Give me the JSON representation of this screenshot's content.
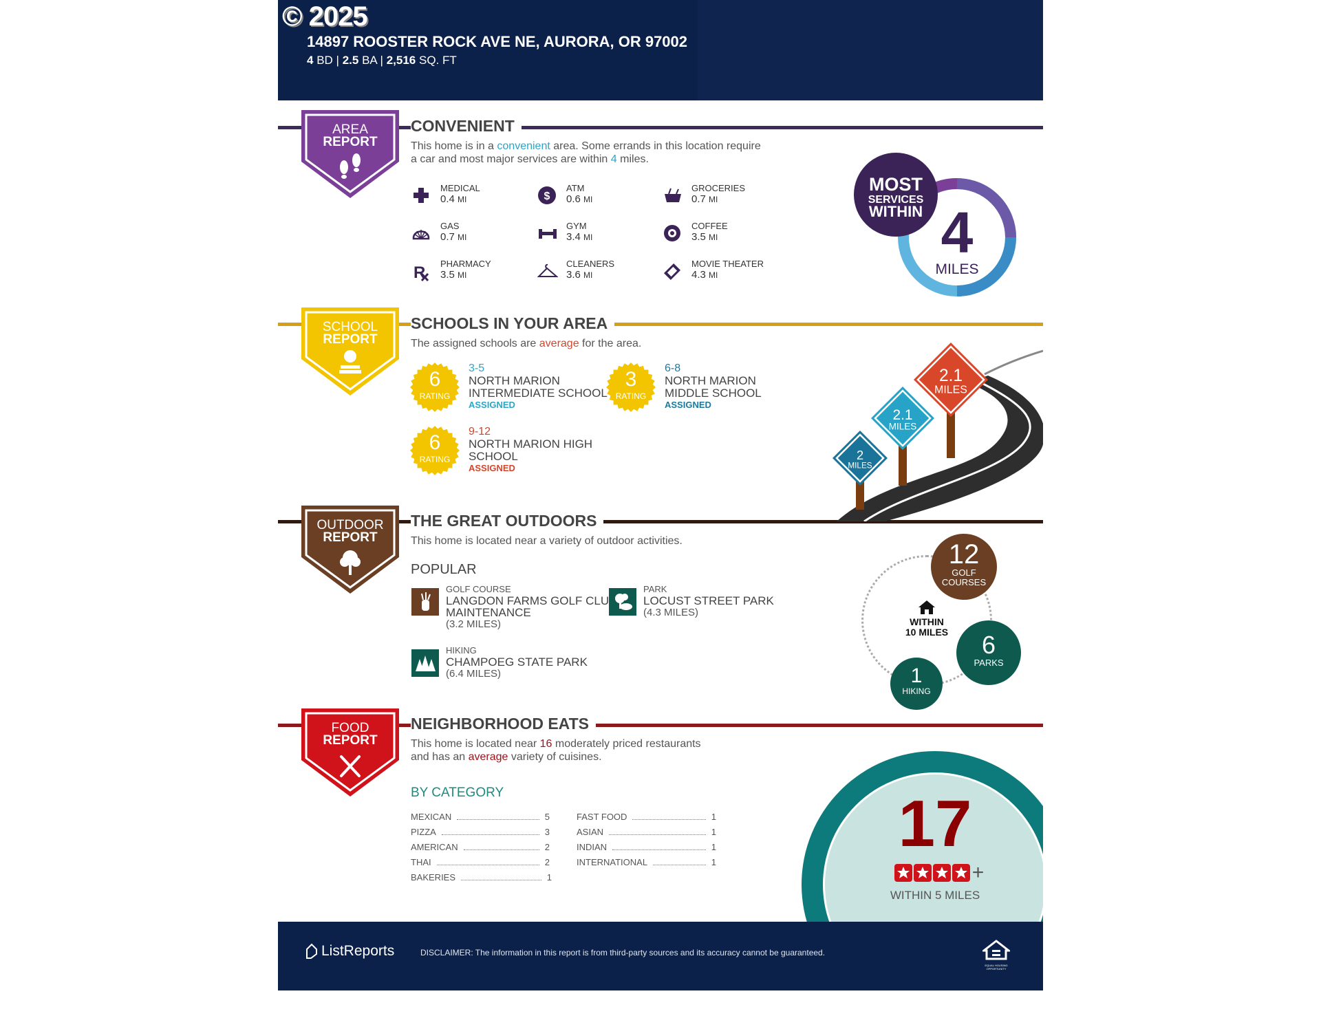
{
  "header": {
    "copyright": "© 2025",
    "address": "14897 ROOSTER ROCK AVE NE, AURORA, OR 97002",
    "beds": "4",
    "beds_unit": "BD",
    "baths": "2.5",
    "baths_unit": "BA",
    "sqft": "2,516",
    "sqft_unit": "SQ. FT",
    "background": "#0c2149"
  },
  "area": {
    "badge": {
      "line1": "AREA",
      "line2": "REPORT",
      "icon": "footprints-icon",
      "color": "#7b3f98"
    },
    "title": "CONVENIENT",
    "desc_pre": "This home is in a ",
    "desc_hl": "convenient",
    "desc_mid": " area. Some errands in this location require",
    "desc_line2_pre": "a car and most major services are within ",
    "desc_hl2": "4",
    "desc_post": " miles.",
    "services": [
      {
        "name": "MEDICAL",
        "dist": "0.4",
        "unit": "MI",
        "icon": "medical-cross-icon"
      },
      {
        "name": "ATM",
        "dist": "0.6",
        "unit": "MI",
        "icon": "dollar-icon"
      },
      {
        "name": "GROCERIES",
        "dist": "0.7",
        "unit": "MI",
        "icon": "grocery-basket-icon"
      },
      {
        "name": "GAS",
        "dist": "0.7",
        "unit": "MI",
        "icon": "shell-icon"
      },
      {
        "name": "GYM",
        "dist": "3.4",
        "unit": "MI",
        "icon": "dumbbell-icon"
      },
      {
        "name": "COFFEE",
        "dist": "3.5",
        "unit": "MI",
        "icon": "coffee-icon"
      },
      {
        "name": "PHARMACY",
        "dist": "3.5",
        "unit": "MI",
        "icon": "rx-icon"
      },
      {
        "name": "CLEANERS",
        "dist": "3.6",
        "unit": "MI",
        "icon": "hanger-icon"
      },
      {
        "name": "MOVIE THEATER",
        "dist": "4.3",
        "unit": "MI",
        "icon": "ticket-icon"
      }
    ],
    "summary": {
      "line1": "MOST",
      "line2": "SERVICES",
      "line3": "WITHIN",
      "value": "4",
      "unit": "MILES"
    }
  },
  "schools": {
    "badge": {
      "line1": "SCHOOL",
      "line2": "REPORT",
      "icon": "apple-books-icon",
      "color": "#f2c500"
    },
    "title": "SCHOOLS IN YOUR AREA",
    "desc_pre": "The assigned schools are ",
    "desc_hl": "average",
    "desc_post": " for the area.",
    "rating_label": "RATING",
    "list": [
      {
        "rating": "6",
        "grades": "3-5",
        "name1": "NORTH MARION",
        "name2": "INTERMEDIATE SCHOOL",
        "status": "ASSIGNED",
        "color": "#2ba6c4"
      },
      {
        "rating": "3",
        "grades": "6-8",
        "name1": "NORTH MARION",
        "name2": "MIDDLE SCHOOL",
        "status": "ASSIGNED",
        "color": "#1a7a9e"
      },
      {
        "rating": "6",
        "grades": "9-12",
        "name1": "NORTH MARION HIGH",
        "name2": "SCHOOL",
        "status": "ASSIGNED",
        "color": "#d2462b"
      }
    ],
    "signs": [
      {
        "value": "2",
        "unit": "MILES",
        "color": "#1a7398"
      },
      {
        "value": "2.1",
        "unit": "MILES",
        "color": "#27a3c7"
      },
      {
        "value": "2.1",
        "unit": "MILES",
        "color": "#d9472a"
      }
    ]
  },
  "outdoors": {
    "badge": {
      "line1": "OUTDOOR",
      "line2": "REPORT",
      "icon": "tree-icon",
      "color": "#6b3f24"
    },
    "title": "THE GREAT OUTDOORS",
    "desc": "This home is located near a variety of outdoor activities.",
    "popular_label": "POPULAR",
    "popular": [
      {
        "type": "GOLF COURSE",
        "name1": "LANGDON FARMS GOLF CLUB",
        "name2": "MAINTENANCE",
        "dist": "(3.2 MILES)",
        "icon": "golf-bag-icon"
      },
      {
        "type": "PARK",
        "name1": "LOCUST STREET PARK",
        "dist": "(4.3 MILES)",
        "icon": "park-icon"
      },
      {
        "type": "HIKING",
        "name1": "CHAMPOEG STATE PARK",
        "dist": "(6.4 MILES)",
        "icon": "pine-trees-icon"
      }
    ],
    "summary": {
      "center1": "WITHIN",
      "center2": "10 MILES",
      "golf_n": "12",
      "golf_l1": "GOLF",
      "golf_l2": "COURSES",
      "parks_n": "6",
      "parks_l": "PARKS",
      "hiking_n": "1",
      "hiking_l": "HIKING"
    }
  },
  "food": {
    "badge": {
      "line1": "FOOD",
      "line2": "REPORT",
      "icon": "fork-knife-icon",
      "color": "#d0121b"
    },
    "title": "NEIGHBORHOOD EATS",
    "desc_pre": "This home is located near ",
    "desc_hl": "16",
    "desc_mid": " moderately priced restaurants",
    "desc_line2_pre": "and has an ",
    "desc_hl2": "average",
    "desc_post": " variety of cuisines.",
    "category_label": "BY CATEGORY",
    "categories_left": [
      {
        "name": "MEXICAN",
        "count": "5"
      },
      {
        "name": "PIZZA",
        "count": "3"
      },
      {
        "name": "AMERICAN",
        "count": "2"
      },
      {
        "name": "THAI",
        "count": "2"
      },
      {
        "name": "BAKERIES",
        "count": "1"
      }
    ],
    "categories_right": [
      {
        "name": "FAST FOOD",
        "count": "1"
      },
      {
        "name": "ASIAN",
        "count": "1"
      },
      {
        "name": "INDIAN",
        "count": "1"
      },
      {
        "name": "INTERNATIONAL",
        "count": "1"
      }
    ],
    "summary": {
      "value": "17",
      "stars": 4,
      "plus": "+",
      "caption": "WITHIN 5 MILES"
    }
  },
  "footer": {
    "brand": "ListReports",
    "disclaimer": "DISCLAIMER: The information in this report is from third-party sources and its accuracy cannot be guaranteed.",
    "eho_icon": "equal-housing-icon",
    "eho_text": "EQUAL HOUSING OPPORTUNITY"
  }
}
